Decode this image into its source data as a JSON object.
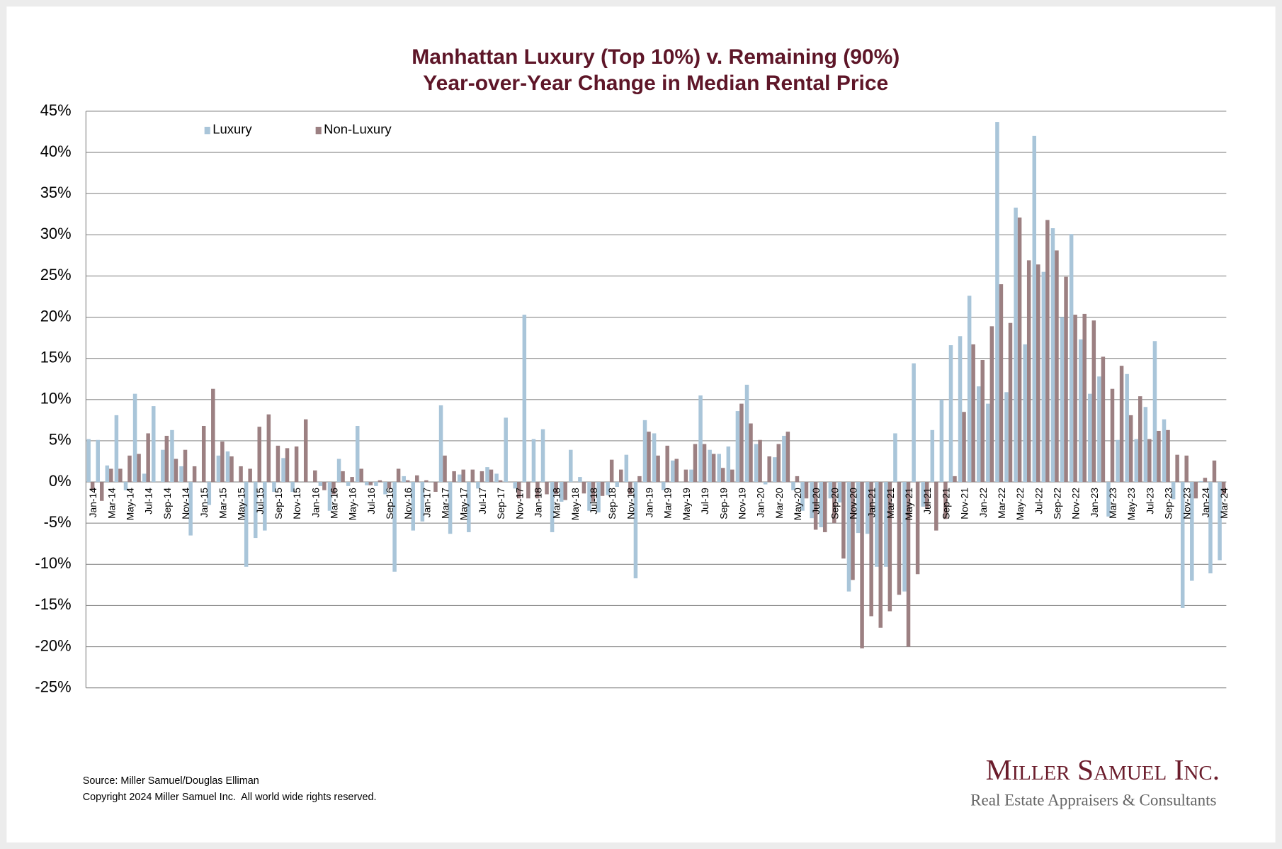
{
  "chart_data": {
    "type": "bar",
    "title": "Manhattan Luxury (Top 10%) v. Remaining (90%)",
    "subtitle": "Year-over-Year Change in Median Rental Price",
    "categories": [
      "Jan-14",
      null,
      "Mar-14",
      null,
      "May-14",
      null,
      "Jul-14",
      null,
      "Sep-14",
      null,
      "Nov-14",
      null,
      "Jan-15",
      null,
      "Mar-15",
      null,
      "May-15",
      null,
      "Jul-15",
      null,
      "Sep-15",
      null,
      "Nov-15",
      null,
      "Jan-16",
      null,
      "Mar-16",
      null,
      "May-16",
      null,
      "Jul-16",
      null,
      "Sep-16",
      null,
      "Nov-16",
      null,
      "Jan-17",
      null,
      "Mar-17",
      null,
      "May-17",
      null,
      "Jul-17",
      null,
      "Sep-17",
      null,
      "Nov-17",
      null,
      "Jan-18",
      null,
      "Mar-18",
      null,
      "May-18",
      null,
      "Jul-18",
      null,
      "Sep-18",
      null,
      "Nov-18",
      null,
      "Jan-19",
      null,
      "Mar-19",
      null,
      "May-19",
      null,
      "Jul-19",
      null,
      "Sep-19",
      null,
      "Nov-19",
      null,
      "Jan-20",
      null,
      "Mar-20",
      null,
      "May-20",
      null,
      "Jul-20",
      null,
      "Sep-20",
      null,
      "Nov-20",
      null,
      "Jan-21",
      null,
      "Mar-21",
      null,
      "May-21",
      null,
      "Jul-21",
      null,
      "Sep-21",
      null,
      "Nov-21",
      null,
      "Jan-22",
      null,
      "Mar-22",
      null,
      "May-22",
      null,
      "Jul-22",
      null,
      "Sep-22",
      null,
      "Nov-22",
      null,
      "Jan-23",
      null,
      "Mar-23",
      null,
      "May-23",
      null,
      "Jul-23",
      null,
      "Sep-23",
      null,
      "Nov-23",
      null,
      "Jan-24",
      null,
      "Mar-24"
    ],
    "series": [
      {
        "name": "Luxury",
        "color": "#a9c5d9",
        "values": [
          5.2,
          5.1,
          2.0,
          8.1,
          -1.0,
          10.7,
          1.0,
          9.2,
          3.9,
          6.3,
          1.9,
          -6.5,
          0,
          -2.8,
          3.2,
          3.7,
          0,
          -10.3,
          -6.8,
          -5.9,
          -1.2,
          2.9,
          -1.2,
          0,
          0,
          -0.5,
          -3.5,
          2.8,
          -0.5,
          6.8,
          -0.4,
          -0.5,
          -1.5,
          -10.9,
          0.7,
          -5.9,
          -4.8,
          0,
          9.3,
          -6.3,
          0.9,
          -6.1,
          -0.8,
          1.8,
          1.0,
          7.8,
          -0.8,
          20.3,
          5.2,
          6.4,
          -6.1,
          -2.4,
          3.9,
          0.6,
          -3.5,
          -3.7,
          -1.6,
          -0.6,
          3.3,
          -11.7,
          7.5,
          5.9,
          -1.0,
          2.6,
          0,
          1.5,
          10.5,
          3.9,
          3.4,
          4.3,
          8.6,
          11.8,
          4.6,
          -0.3,
          3.0,
          5.6,
          -1.0,
          -3.5,
          -4.4,
          -5.5,
          -2.0,
          -2.5,
          -13.3,
          -6.2,
          -6.3,
          -10.3,
          -10.3,
          5.9,
          -13.3,
          14.4,
          -3.0,
          6.3,
          10.0,
          16.6,
          17.7,
          22.6,
          11.6,
          9.5,
          43.7,
          10.9,
          33.3,
          16.7,
          42.0,
          25.5,
          30.8,
          20.0,
          30.1,
          17.3,
          10.7,
          12.8,
          -4.2,
          5.1,
          13.1,
          5.2,
          9.1,
          17.1,
          7.6,
          -2.1,
          -15.3,
          -12.0,
          0.1,
          -11.1,
          -9.5
        ]
      },
      {
        "name": "Non-Luxury",
        "color": "#9c8082",
        "values": [
          -1.0,
          -2.3,
          1.6,
          1.6,
          3.2,
          3.4,
          5.9,
          0,
          5.6,
          2.8,
          3.9,
          1.9,
          6.8,
          11.3,
          4.9,
          3.1,
          1.9,
          1.6,
          6.7,
          8.2,
          4.4,
          4.1,
          4.3,
          7.6,
          1.4,
          -1.0,
          -1.5,
          1.3,
          0.6,
          1.6,
          -0.4,
          0.2,
          -0.8,
          1.6,
          0.2,
          0.8,
          0.2,
          -1.2,
          3.2,
          1.3,
          1.5,
          1.5,
          1.3,
          1.5,
          0.2,
          0,
          -2.0,
          -2.0,
          -2.0,
          -1.5,
          -1.5,
          -2.2,
          0,
          -1.4,
          -2.4,
          -1.7,
          2.7,
          1.5,
          -1.5,
          0.7,
          6.1,
          3.2,
          4.4,
          2.8,
          1.5,
          4.6,
          4.6,
          3.4,
          1.7,
          1.5,
          9.5,
          7.1,
          5.1,
          3.1,
          4.6,
          6.1,
          0.7,
          -2.0,
          -5.8,
          -6.1,
          -5.0,
          -9.3,
          -11.9,
          -20.2,
          -16.3,
          -17.7,
          -15.7,
          -13.7,
          -20.0,
          -11.2,
          -3.2,
          -5.9,
          -4.5,
          0.7,
          8.5,
          16.7,
          14.8,
          18.9,
          24.0,
          19.3,
          32.1,
          26.9,
          26.4,
          31.8,
          28.1,
          24.9,
          20.3,
          20.4,
          19.6,
          15.2,
          11.3,
          14.1,
          8.1,
          10.4,
          5.2,
          6.2,
          6.3,
          3.3,
          3.2,
          -2.0,
          0.5,
          2.6,
          -1.5
        ]
      }
    ],
    "ylim": [
      -25,
      45
    ],
    "yticks": [
      {
        "value": -25,
        "label": "-25%"
      },
      {
        "value": -20,
        "label": "-20%"
      },
      {
        "value": -15,
        "label": "-15%"
      },
      {
        "value": -10,
        "label": "-10%"
      },
      {
        "value": -5,
        "label": "-5%"
      },
      {
        "value": 0,
        "label": "0%"
      },
      {
        "value": 5,
        "label": "5%"
      },
      {
        "value": 10,
        "label": "10%"
      },
      {
        "value": 15,
        "label": "15%"
      },
      {
        "value": 20,
        "label": "20%"
      },
      {
        "value": 25,
        "label": "25%"
      },
      {
        "value": 30,
        "label": "30%"
      },
      {
        "value": 35,
        "label": "35%"
      },
      {
        "value": 40,
        "label": "40%"
      },
      {
        "value": 45,
        "label": "45%"
      }
    ],
    "grid": true,
    "legend": "top-left",
    "source": "Source: Miller Samuel/Douglas Elliman",
    "copyright": "Copyright 2024 Miller Samuel Inc.  All world wide rights reserved.",
    "brand": "Miller Samuel Inc.",
    "brand_tagline": "Real Estate Appraisers & Consultants"
  }
}
